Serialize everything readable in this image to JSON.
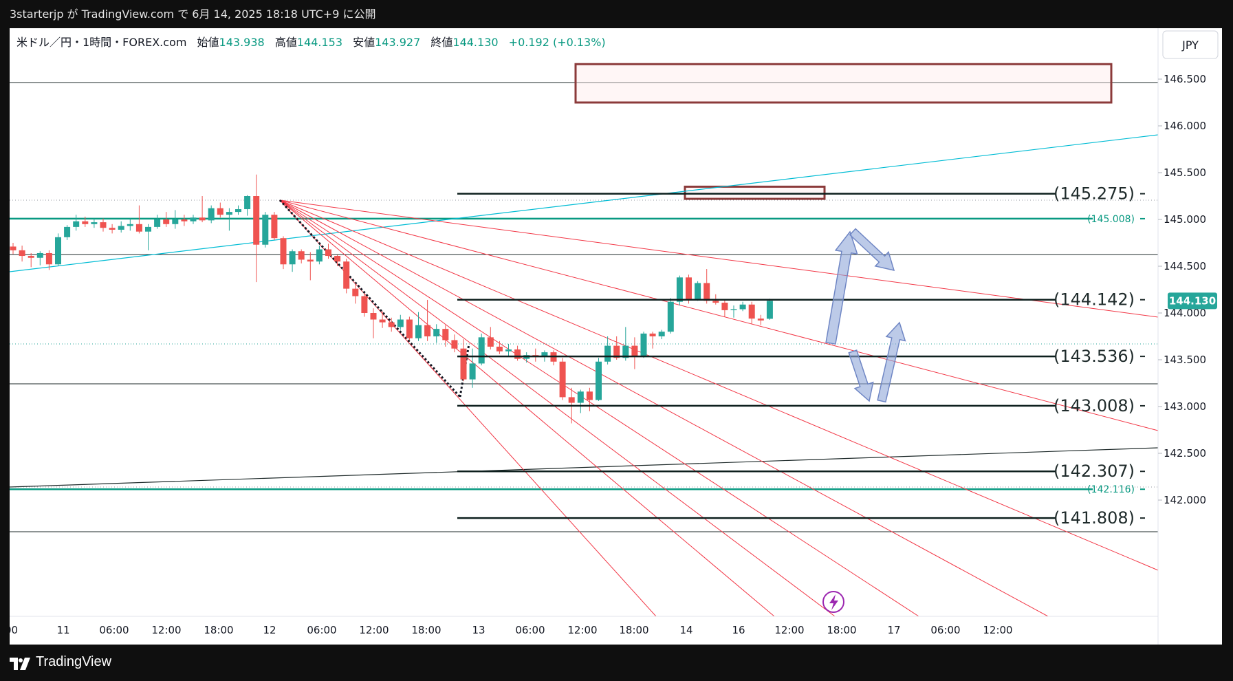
{
  "header": {
    "published_by": "3starterjp が TradingView.com で 6月 14, 2025 18:18 UTC+9 に公開"
  },
  "legend": {
    "symbol": "米ドル／円・1時間・FOREX.com",
    "open_label": "始値",
    "open": "143.938",
    "high_label": "高値",
    "high": "144.153",
    "low_label": "安値",
    "low": "143.927",
    "close_label": "終値",
    "close": "144.130",
    "change": "+0.192 (+0.13%)"
  },
  "currency_button": "JPY",
  "current_price_tag": "144.130",
  "footer": {
    "brand": "TradingView"
  },
  "colors": {
    "up": "#26a69a",
    "down": "#ef5350",
    "fan": "#f23645",
    "channel": "#00bcd4",
    "level": "#1e2a2a",
    "zone": "#8b3a3a",
    "arrow": "#8fa6d9"
  },
  "chart_data": {
    "type": "candlestick",
    "currency": "JPY",
    "y_axis": {
      "ticks": [
        "146.500",
        "146.000",
        "145.500",
        "145.000",
        "144.500",
        "144.000",
        "143.500",
        "143.000",
        "142.500",
        "142.000"
      ],
      "range": [
        141.6,
        146.9
      ]
    },
    "x_axis": {
      "ticks": [
        ":00",
        "11",
        "06:00",
        "12:00",
        "18:00",
        "12",
        "06:00",
        "12:00",
        "18:00",
        "13",
        "06:00",
        "12:00",
        "18:00",
        "14",
        "16",
        "12:00",
        "18:00",
        "17",
        "06:00",
        "12:00"
      ]
    },
    "candles": [
      {
        "o": 144.71,
        "h": 144.75,
        "l": 144.63,
        "c": 144.67
      },
      {
        "o": 144.67,
        "h": 144.72,
        "l": 144.55,
        "c": 144.61
      },
      {
        "o": 144.61,
        "h": 144.64,
        "l": 144.49,
        "c": 144.59
      },
      {
        "o": 144.59,
        "h": 144.66,
        "l": 144.51,
        "c": 144.64
      },
      {
        "o": 144.64,
        "h": 144.67,
        "l": 144.46,
        "c": 144.52
      },
      {
        "o": 144.52,
        "h": 144.85,
        "l": 144.5,
        "c": 144.81
      },
      {
        "o": 144.81,
        "h": 144.94,
        "l": 144.78,
        "c": 144.92
      },
      {
        "o": 144.92,
        "h": 145.05,
        "l": 144.88,
        "c": 144.98
      },
      {
        "o": 144.98,
        "h": 145.03,
        "l": 144.92,
        "c": 144.95
      },
      {
        "o": 144.95,
        "h": 145.01,
        "l": 144.91,
        "c": 144.97
      },
      {
        "o": 144.97,
        "h": 145.01,
        "l": 144.87,
        "c": 144.91
      },
      {
        "o": 144.91,
        "h": 144.95,
        "l": 144.85,
        "c": 144.89
      },
      {
        "o": 144.89,
        "h": 144.98,
        "l": 144.86,
        "c": 144.93
      },
      {
        "o": 144.93,
        "h": 145.01,
        "l": 144.88,
        "c": 144.95
      },
      {
        "o": 144.95,
        "h": 145.15,
        "l": 144.85,
        "c": 144.87
      },
      {
        "o": 144.87,
        "h": 144.95,
        "l": 144.67,
        "c": 144.92
      },
      {
        "o": 144.92,
        "h": 145.05,
        "l": 144.9,
        "c": 145.0
      },
      {
        "o": 145.0,
        "h": 145.08,
        "l": 144.92,
        "c": 144.95
      },
      {
        "o": 144.95,
        "h": 145.1,
        "l": 144.9,
        "c": 145.0
      },
      {
        "o": 145.0,
        "h": 145.05,
        "l": 144.93,
        "c": 144.98
      },
      {
        "o": 144.98,
        "h": 145.05,
        "l": 144.95,
        "c": 145.02
      },
      {
        "o": 145.02,
        "h": 145.25,
        "l": 144.97,
        "c": 144.99
      },
      {
        "o": 144.99,
        "h": 145.15,
        "l": 144.96,
        "c": 145.12
      },
      {
        "o": 145.12,
        "h": 145.18,
        "l": 145.02,
        "c": 145.05
      },
      {
        "o": 145.05,
        "h": 145.12,
        "l": 144.88,
        "c": 145.08
      },
      {
        "o": 145.08,
        "h": 145.15,
        "l": 145.05,
        "c": 145.11
      },
      {
        "o": 145.11,
        "h": 145.26,
        "l": 145.04,
        "c": 145.25
      },
      {
        "o": 145.25,
        "h": 145.48,
        "l": 144.33,
        "c": 144.73
      },
      {
        "o": 144.73,
        "h": 145.08,
        "l": 144.7,
        "c": 145.05
      },
      {
        "o": 145.05,
        "h": 145.08,
        "l": 144.78,
        "c": 144.8
      },
      {
        "o": 144.8,
        "h": 144.82,
        "l": 144.47,
        "c": 144.52
      },
      {
        "o": 144.52,
        "h": 144.68,
        "l": 144.44,
        "c": 144.66
      },
      {
        "o": 144.66,
        "h": 144.68,
        "l": 144.53,
        "c": 144.57
      },
      {
        "o": 144.57,
        "h": 144.65,
        "l": 144.35,
        "c": 144.55
      },
      {
        "o": 144.55,
        "h": 144.72,
        "l": 144.52,
        "c": 144.68
      },
      {
        "o": 144.68,
        "h": 144.74,
        "l": 144.58,
        "c": 144.61
      },
      {
        "o": 144.61,
        "h": 144.62,
        "l": 144.5,
        "c": 144.55
      },
      {
        "o": 144.55,
        "h": 144.58,
        "l": 144.21,
        "c": 144.26
      },
      {
        "o": 144.26,
        "h": 144.32,
        "l": 144.1,
        "c": 144.18
      },
      {
        "o": 144.18,
        "h": 144.2,
        "l": 143.96,
        "c": 144.0
      },
      {
        "o": 144.0,
        "h": 144.05,
        "l": 143.73,
        "c": 143.93
      },
      {
        "o": 143.93,
        "h": 144.02,
        "l": 143.84,
        "c": 143.9
      },
      {
        "o": 143.9,
        "h": 143.95,
        "l": 143.8,
        "c": 143.85
      },
      {
        "o": 143.85,
        "h": 143.98,
        "l": 143.82,
        "c": 143.93
      },
      {
        "o": 143.93,
        "h": 143.96,
        "l": 143.71,
        "c": 143.73
      },
      {
        "o": 143.73,
        "h": 144.01,
        "l": 143.7,
        "c": 143.87
      },
      {
        "o": 143.87,
        "h": 144.14,
        "l": 143.7,
        "c": 143.75
      },
      {
        "o": 143.75,
        "h": 143.88,
        "l": 143.68,
        "c": 143.83
      },
      {
        "o": 143.83,
        "h": 143.87,
        "l": 143.64,
        "c": 143.71
      },
      {
        "o": 143.71,
        "h": 143.77,
        "l": 143.58,
        "c": 143.62
      },
      {
        "o": 143.62,
        "h": 143.72,
        "l": 143.27,
        "c": 143.29
      },
      {
        "o": 143.29,
        "h": 143.62,
        "l": 143.2,
        "c": 143.46
      },
      {
        "o": 143.46,
        "h": 143.78,
        "l": 143.44,
        "c": 143.74
      },
      {
        "o": 143.74,
        "h": 143.85,
        "l": 143.61,
        "c": 143.64
      },
      {
        "o": 143.64,
        "h": 143.7,
        "l": 143.56,
        "c": 143.59
      },
      {
        "o": 143.59,
        "h": 143.67,
        "l": 143.54,
        "c": 143.61
      },
      {
        "o": 143.61,
        "h": 143.65,
        "l": 143.49,
        "c": 143.51
      },
      {
        "o": 143.51,
        "h": 143.58,
        "l": 143.47,
        "c": 143.55
      },
      {
        "o": 143.55,
        "h": 143.62,
        "l": 143.48,
        "c": 143.53
      },
      {
        "o": 143.53,
        "h": 143.6,
        "l": 143.48,
        "c": 143.58
      },
      {
        "o": 143.58,
        "h": 143.6,
        "l": 143.44,
        "c": 143.48
      },
      {
        "o": 143.48,
        "h": 143.52,
        "l": 143.07,
        "c": 143.1
      },
      {
        "o": 143.1,
        "h": 143.2,
        "l": 142.82,
        "c": 143.04
      },
      {
        "o": 143.04,
        "h": 143.18,
        "l": 142.93,
        "c": 143.16
      },
      {
        "o": 143.16,
        "h": 143.2,
        "l": 142.95,
        "c": 143.07
      },
      {
        "o": 143.07,
        "h": 143.52,
        "l": 143.06,
        "c": 143.48
      },
      {
        "o": 143.48,
        "h": 143.75,
        "l": 143.45,
        "c": 143.65
      },
      {
        "o": 143.65,
        "h": 143.75,
        "l": 143.5,
        "c": 143.52
      },
      {
        "o": 143.52,
        "h": 143.85,
        "l": 143.49,
        "c": 143.65
      },
      {
        "o": 143.65,
        "h": 143.74,
        "l": 143.4,
        "c": 143.54
      },
      {
        "o": 143.54,
        "h": 143.8,
        "l": 143.52,
        "c": 143.78
      },
      {
        "o": 143.78,
        "h": 143.8,
        "l": 143.62,
        "c": 143.75
      },
      {
        "o": 143.75,
        "h": 143.82,
        "l": 143.72,
        "c": 143.8
      },
      {
        "o": 143.8,
        "h": 144.16,
        "l": 143.78,
        "c": 144.12
      },
      {
        "o": 144.12,
        "h": 144.4,
        "l": 144.08,
        "c": 144.38
      },
      {
        "o": 144.38,
        "h": 144.41,
        "l": 144.1,
        "c": 144.15
      },
      {
        "o": 144.15,
        "h": 144.34,
        "l": 144.13,
        "c": 144.32
      },
      {
        "o": 144.32,
        "h": 144.47,
        "l": 144.1,
        "c": 144.13
      },
      {
        "o": 144.13,
        "h": 144.2,
        "l": 144.09,
        "c": 144.11
      },
      {
        "o": 144.11,
        "h": 144.15,
        "l": 143.96,
        "c": 144.03
      },
      {
        "o": 144.03,
        "h": 144.08,
        "l": 143.95,
        "c": 144.04
      },
      {
        "o": 144.04,
        "h": 144.12,
        "l": 144.02,
        "c": 144.09
      },
      {
        "o": 144.09,
        "h": 144.12,
        "l": 143.88,
        "c": 143.94
      },
      {
        "o": 143.94,
        "h": 143.98,
        "l": 143.87,
        "c": 143.92
      },
      {
        "o": 143.938,
        "h": 144.153,
        "l": 143.927,
        "c": 144.13
      }
    ],
    "levels": [
      {
        "label": "(145.275)",
        "value": 145.275
      },
      {
        "label": "(144.142)",
        "value": 144.142
      },
      {
        "label": "(143.536)",
        "value": 143.536
      },
      {
        "label": "(143.008)",
        "value": 143.008
      },
      {
        "label": "(142.307)",
        "value": 142.307
      },
      {
        "label": "(141.808)",
        "value": 141.808
      }
    ],
    "teal_levels": [
      {
        "label": "(145.008)",
        "value": 145.008
      },
      {
        "label": "(142.116)",
        "value": 142.116
      }
    ],
    "zones": [
      {
        "top": 146.66,
        "bottom": 146.25
      },
      {
        "top": 145.35,
        "bottom": 145.22
      }
    ]
  }
}
